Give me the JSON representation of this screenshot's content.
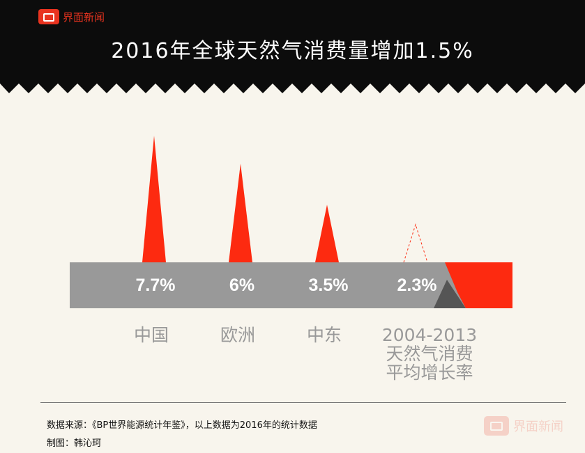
{
  "brand": {
    "logo_text": "界面新闻",
    "watermark_text": "界面新闻"
  },
  "header": {
    "title": "2016年全球天然气消费量增加1.5%"
  },
  "footer": {
    "source": "数据来源：《BP世界能源统计年鉴》，以上数据为2016年的统计数据",
    "credit": "制图：韩沁珂"
  },
  "colors": {
    "accent": "#fd2a10",
    "bar": "#999999",
    "header_bg": "#0c0c0c",
    "background": "#f8f5ed"
  },
  "chart_data": {
    "type": "bar",
    "categories": [
      "中国",
      "欧洲",
      "中东",
      "2004-2013\n天然气消费\n平均增长率"
    ],
    "values": [
      7.7,
      6,
      3.5,
      2.3
    ],
    "value_labels": [
      "7.7%",
      "6%",
      "3.5%",
      "2.3%"
    ],
    "title": "2016年全球天然气消费量增加1.5%",
    "xlabel": "",
    "ylabel": "",
    "reference": {
      "label": "2004-2013 天然气消费平均增长率",
      "value": 2.3
    }
  }
}
